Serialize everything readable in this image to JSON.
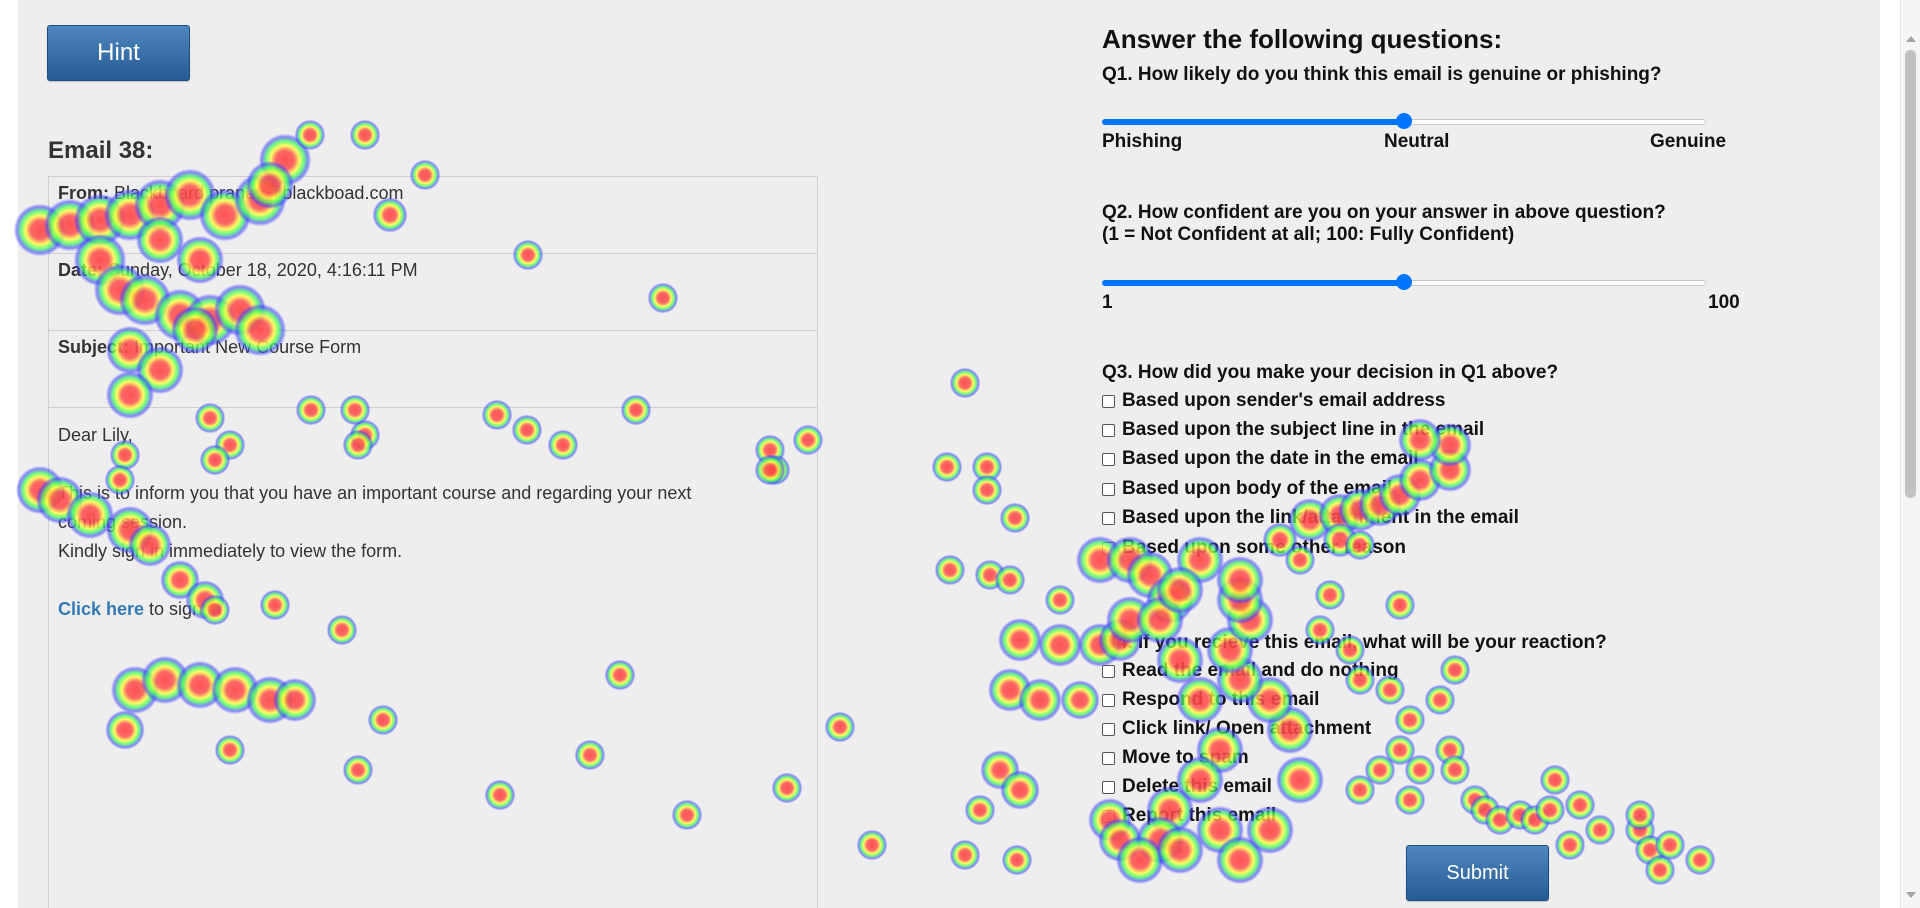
{
  "hint_button": "Hint",
  "email": {
    "title": "Email 38:",
    "from_label": "From:",
    "from_value": "Blackboard praney@blackboad.com",
    "date_label": "Date:",
    "date_value": "Sunday, October 18, 2020, 4:16:11 PM",
    "subject_label": "Subject:",
    "subject_value": "Important New Course Form",
    "greeting": "Dear Lily,",
    "body_line1": "This is to inform you that you have an important course and regarding your next",
    "body_line2": "coming session.",
    "body_line3": "Kindly sign in immediately to view the form.",
    "link_text": "Click here",
    "link_suffix": " to sign in"
  },
  "questions": {
    "heading": "Answer the following questions:",
    "q1": {
      "text": "Q1. How likely do you think this email is genuine or phishing?",
      "value": 0.5,
      "label_left": "Phishing",
      "label_mid": "Neutral",
      "label_right": "Genuine"
    },
    "q2": {
      "text_line1": "Q2. How confident are you on your answer in above question?",
      "text_line2": "(1 = Not Confident at all; 100: Fully Confident)",
      "value": 0.5,
      "label_left": "1",
      "label_right": "100"
    },
    "q3": {
      "text": "Q3. How did you make your decision in Q1 above?",
      "options": [
        "Based upon sender's email address",
        "Based upon the subject line in the email",
        "Based upon the date in the email",
        "Based upon body of the email",
        "Based upon the link/attachment in the email",
        "Based upon some other reason"
      ]
    },
    "q4": {
      "text": "Q4. If you recieve this email, what will be your reaction?",
      "options": [
        "Read the email and do nothing",
        "Respond to this email",
        "Click link/ Open attachment",
        "Move to spam",
        "Delete this email",
        "Report this email"
      ]
    }
  },
  "submit_button": "Submit",
  "colors": {
    "button_blue": "#2f6aa3",
    "slider_blue": "#0075ff",
    "link_blue": "#337ab7",
    "background": "#eeeeee"
  }
}
